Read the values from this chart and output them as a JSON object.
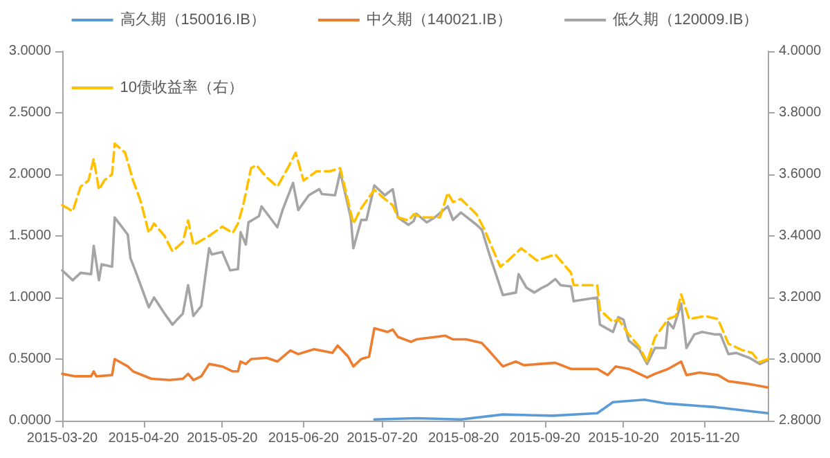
{
  "chart_data": {
    "type": "line",
    "legend": "top",
    "marker": "none",
    "xlim": [
      "2015-03-20",
      "2015-12-14"
    ],
    "xticks": [
      {
        "value": "2015-03-20",
        "label": "2015-03-20"
      },
      {
        "value": "2015-04-20",
        "label": "2015-04-20"
      },
      {
        "value": "2015-05-20",
        "label": "2015-05-20"
      },
      {
        "value": "2015-06-20",
        "label": "2015-06-20"
      },
      {
        "value": "2015-07-20",
        "label": "2015-07-20"
      },
      {
        "value": "2015-08-20",
        "label": "2015-08-20"
      },
      {
        "value": "2015-09-20",
        "label": "2015-09-20"
      },
      {
        "value": "2015-10-20",
        "label": "2015-10-20"
      },
      {
        "value": "2015-11-20",
        "label": "2015-11-20"
      }
    ],
    "ylim": [
      0,
      3
    ],
    "yticks": [
      {
        "value": 0,
        "label": "0.0000"
      },
      {
        "value": 0.5,
        "label": "0.5000"
      },
      {
        "value": 1,
        "label": "1.0000"
      },
      {
        "value": 1.5,
        "label": "1.5000"
      },
      {
        "value": 2,
        "label": "2.0000"
      },
      {
        "value": 2.5,
        "label": "2.5000"
      },
      {
        "value": 3,
        "label": "3.0000"
      }
    ],
    "y2lim": [
      2.8,
      4
    ],
    "y2ticks": [
      {
        "value": 2.8,
        "label": "2.8000"
      },
      {
        "value": 3,
        "label": "3.0000"
      },
      {
        "value": 3.2,
        "label": "3.2000"
      },
      {
        "value": 3.4,
        "label": "3.4000"
      },
      {
        "value": 3.6,
        "label": "3.6000"
      },
      {
        "value": 3.8,
        "label": "3.8000"
      },
      {
        "value": 4,
        "label": "4.0000"
      }
    ],
    "series": [
      {
        "name": "高久期（150016.IB）",
        "color": "#5b9bd5",
        "x": [
          "2015-07-17",
          "2015-08-02",
          "2015-08-19",
          "2015-09-04",
          "2015-09-23",
          "2015-10-10",
          "2015-10-16",
          "2015-10-28",
          "2015-11-05",
          "2015-11-24",
          "2015-12-14"
        ],
        "values": [
          0.01,
          0.02,
          0.01,
          0.05,
          0.04,
          0.06,
          0.15,
          0.17,
          0.14,
          0.11,
          0.06
        ]
      },
      {
        "name": "中久期（140021.IB）",
        "color": "#ed7d31",
        "x": [
          "2015-03-20",
          "2015-03-25",
          "2015-03-31",
          "2015-04-01",
          "2015-04-02",
          "2015-04-08",
          "2015-04-09",
          "2015-04-14",
          "2015-04-16",
          "2015-04-23",
          "2015-04-30",
          "2015-05-05",
          "2015-05-07",
          "2015-05-09",
          "2015-05-12",
          "2015-05-15",
          "2015-05-20",
          "2015-05-24",
          "2015-05-26",
          "2015-05-27",
          "2015-05-29",
          "2015-05-31",
          "2015-06-06",
          "2015-06-10",
          "2015-06-15",
          "2015-06-18",
          "2015-06-24",
          "2015-07-01",
          "2015-07-03",
          "2015-07-07",
          "2015-07-09",
          "2015-07-12",
          "2015-07-15",
          "2015-07-17",
          "2015-07-22",
          "2015-07-24",
          "2015-07-26",
          "2015-07-31",
          "2015-08-02",
          "2015-08-13",
          "2015-08-16",
          "2015-08-21",
          "2015-08-27",
          "2015-08-30",
          "2015-09-04",
          "2015-09-09",
          "2015-09-12",
          "2015-09-18",
          "2015-09-24",
          "2015-09-30",
          "2015-10-10",
          "2015-10-14",
          "2015-10-17",
          "2015-10-22",
          "2015-10-29",
          "2015-11-01",
          "2015-11-06",
          "2015-11-11",
          "2015-11-13",
          "2015-11-18",
          "2015-11-25",
          "2015-11-29",
          "2015-12-06",
          "2015-12-14"
        ],
        "values": [
          0.38,
          0.36,
          0.36,
          0.4,
          0.36,
          0.37,
          0.5,
          0.44,
          0.4,
          0.34,
          0.33,
          0.34,
          0.38,
          0.33,
          0.36,
          0.46,
          0.44,
          0.4,
          0.4,
          0.48,
          0.46,
          0.5,
          0.51,
          0.48,
          0.57,
          0.54,
          0.58,
          0.55,
          0.61,
          0.52,
          0.44,
          0.5,
          0.52,
          0.75,
          0.72,
          0.74,
          0.68,
          0.64,
          0.66,
          0.69,
          0.66,
          0.66,
          0.63,
          0.56,
          0.44,
          0.48,
          0.45,
          0.46,
          0.47,
          0.42,
          0.42,
          0.37,
          0.44,
          0.42,
          0.35,
          0.38,
          0.42,
          0.48,
          0.37,
          0.39,
          0.37,
          0.32,
          0.3,
          0.27
        ]
      },
      {
        "name": "低久期（120009.IB）",
        "color": "#a5a5a5",
        "x": [
          "2015-03-20",
          "2015-03-24",
          "2015-03-27",
          "2015-03-31",
          "2015-04-01",
          "2015-04-03",
          "2015-04-04",
          "2015-04-08",
          "2015-04-09",
          "2015-04-14",
          "2015-04-15",
          "2015-04-17",
          "2015-04-22",
          "2015-04-24",
          "2015-04-28",
          "2015-05-01",
          "2015-05-05",
          "2015-05-07",
          "2015-05-09",
          "2015-05-12",
          "2015-05-15",
          "2015-05-16",
          "2015-05-20",
          "2015-05-23",
          "2015-05-26",
          "2015-05-27",
          "2015-05-29",
          "2015-05-30",
          "2015-06-03",
          "2015-06-04",
          "2015-06-10",
          "2015-06-12",
          "2015-06-16",
          "2015-06-18",
          "2015-06-22",
          "2015-06-26",
          "2015-06-27",
          "2015-07-02",
          "2015-07-04",
          "2015-07-08",
          "2015-07-09",
          "2015-07-12",
          "2015-07-14",
          "2015-07-17",
          "2015-07-21",
          "2015-07-24",
          "2015-07-26",
          "2015-07-30",
          "2015-08-01",
          "2015-08-02",
          "2015-08-06",
          "2015-08-09",
          "2015-08-14",
          "2015-08-16",
          "2015-08-19",
          "2015-08-25",
          "2015-08-27",
          "2015-08-30",
          "2015-09-04",
          "2015-09-09",
          "2015-09-10",
          "2015-09-13",
          "2015-09-16",
          "2015-09-19",
          "2015-09-21",
          "2015-09-24",
          "2015-09-26",
          "2015-09-30",
          "2015-10-01",
          "2015-10-10",
          "2015-10-11",
          "2015-10-16",
          "2015-10-18",
          "2015-10-20",
          "2015-10-22",
          "2015-10-26",
          "2015-10-29",
          "2015-11-01",
          "2015-11-05",
          "2015-11-06",
          "2015-11-08",
          "2015-11-11",
          "2015-11-13",
          "2015-11-16",
          "2015-11-19",
          "2015-11-24",
          "2015-11-26",
          "2015-11-29",
          "2015-12-02",
          "2015-12-07",
          "2015-12-11",
          "2015-12-14"
        ],
        "values": [
          1.22,
          1.14,
          1.2,
          1.19,
          1.42,
          1.14,
          1.27,
          1.25,
          1.65,
          1.51,
          1.32,
          1.21,
          0.92,
          1.0,
          0.87,
          0.78,
          0.87,
          1.1,
          0.85,
          0.93,
          1.4,
          1.35,
          1.37,
          1.22,
          1.23,
          1.53,
          1.43,
          1.61,
          1.66,
          1.74,
          1.57,
          1.71,
          1.93,
          1.71,
          1.83,
          1.88,
          1.84,
          1.83,
          2.02,
          1.65,
          1.4,
          1.63,
          1.63,
          1.91,
          1.83,
          1.88,
          1.65,
          1.59,
          1.62,
          1.68,
          1.61,
          1.65,
          1.74,
          1.63,
          1.69,
          1.59,
          1.55,
          1.34,
          1.02,
          1.04,
          1.19,
          1.08,
          1.04,
          1.08,
          1.1,
          1.15,
          1.1,
          1.09,
          0.97,
          1.0,
          0.78,
          0.72,
          0.84,
          0.82,
          0.65,
          0.58,
          0.46,
          0.59,
          0.59,
          0.8,
          0.75,
          0.95,
          0.59,
          0.7,
          0.72,
          0.7,
          0.7,
          0.54,
          0.55,
          0.51,
          0.46,
          0.49
        ]
      },
      {
        "name": "10债收益率（右）",
        "color": "#ffc000",
        "line_style": "dashed",
        "axis": "y2",
        "x": [
          "2015-03-20",
          "2015-03-24",
          "2015-03-27",
          "2015-03-30",
          "2015-04-01",
          "2015-04-03",
          "2015-04-05",
          "2015-04-08",
          "2015-04-09",
          "2015-04-13",
          "2015-04-16",
          "2015-04-19",
          "2015-04-22",
          "2015-04-24",
          "2015-04-28",
          "2015-05-01",
          "2015-05-05",
          "2015-05-07",
          "2015-05-09",
          "2015-05-15",
          "2015-05-20",
          "2015-05-24",
          "2015-05-26",
          "2015-05-28",
          "2015-05-31",
          "2015-06-02",
          "2015-06-06",
          "2015-06-10",
          "2015-06-14",
          "2015-06-17",
          "2015-06-20",
          "2015-06-25",
          "2015-06-30",
          "2015-07-04",
          "2015-07-09",
          "2015-07-12",
          "2015-07-17",
          "2015-07-21",
          "2015-07-24",
          "2015-07-26",
          "2015-07-30",
          "2015-08-01",
          "2015-08-05",
          "2015-08-11",
          "2015-08-14",
          "2015-08-16",
          "2015-08-19",
          "2015-08-25",
          "2015-08-28",
          "2015-09-03",
          "2015-09-06",
          "2015-09-11",
          "2015-09-17",
          "2015-09-24",
          "2015-09-30",
          "2015-10-01",
          "2015-10-10",
          "2015-10-11",
          "2015-10-16",
          "2015-10-18",
          "2015-10-22",
          "2015-10-26",
          "2015-10-29",
          "2015-11-01",
          "2015-11-06",
          "2015-11-09",
          "2015-11-11",
          "2015-11-14",
          "2015-11-20",
          "2015-11-25",
          "2015-11-29",
          "2015-12-04",
          "2015-12-08",
          "2015-12-11",
          "2015-12-14"
        ],
        "values": [
          3.5,
          3.48,
          3.56,
          3.58,
          3.65,
          3.55,
          3.58,
          3.6,
          3.7,
          3.67,
          3.58,
          3.51,
          3.41,
          3.44,
          3.4,
          3.35,
          3.38,
          3.45,
          3.37,
          3.4,
          3.43,
          3.41,
          3.44,
          3.5,
          3.62,
          3.63,
          3.59,
          3.56,
          3.62,
          3.67,
          3.58,
          3.61,
          3.61,
          3.62,
          3.44,
          3.49,
          3.55,
          3.52,
          3.5,
          3.46,
          3.45,
          3.47,
          3.46,
          3.46,
          3.54,
          3.51,
          3.52,
          3.47,
          3.42,
          3.3,
          3.32,
          3.36,
          3.32,
          3.34,
          3.28,
          3.24,
          3.24,
          3.16,
          3.12,
          3.13,
          3.08,
          3.04,
          2.99,
          3.07,
          3.13,
          3.14,
          3.21,
          3.13,
          3.14,
          3.13,
          3.05,
          3.03,
          3.02,
          2.99,
          3.0
        ]
      }
    ]
  }
}
